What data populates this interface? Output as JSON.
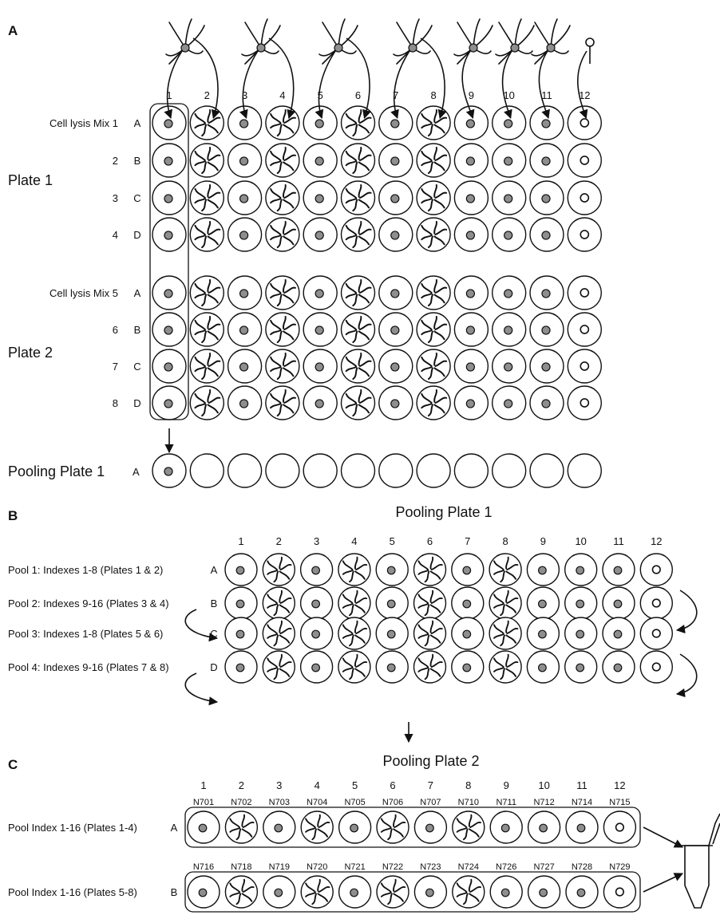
{
  "panels": {
    "a": "A",
    "b": "B",
    "c": "C"
  },
  "section_a": {
    "column_numbers": [
      "1",
      "2",
      "3",
      "4",
      "5",
      "6",
      "7",
      "8",
      "9",
      "10",
      "11",
      "12"
    ],
    "plates": [
      {
        "label": "Plate 1",
        "rows": [
          {
            "mix": "Cell lysis Mix 1",
            "letter": "A"
          },
          {
            "mix": "2",
            "letter": "B"
          },
          {
            "mix": "3",
            "letter": "C"
          },
          {
            "mix": "4",
            "letter": "D"
          }
        ]
      },
      {
        "label": "Plate 2",
        "rows": [
          {
            "mix": "Cell lysis Mix 5",
            "letter": "A"
          },
          {
            "mix": "6",
            "letter": "B"
          },
          {
            "mix": "7",
            "letter": "C"
          },
          {
            "mix": "8",
            "letter": "D"
          }
        ]
      }
    ],
    "pooling_label": "Pooling Plate 1",
    "pooling_row": "A"
  },
  "section_b": {
    "title": "Pooling Plate 1",
    "column_numbers": [
      "1",
      "2",
      "3",
      "4",
      "5",
      "6",
      "7",
      "8",
      "9",
      "10",
      "11",
      "12"
    ],
    "pools": [
      {
        "label": "Pool 1: Indexes 1-8 (Plates 1 & 2)",
        "letter": "A"
      },
      {
        "label": "Pool 2: Indexes 9-16 (Plates 3 & 4)",
        "letter": "B"
      },
      {
        "label": "Pool 3: Indexes 1-8 (Plates 5 & 6)",
        "letter": "C"
      },
      {
        "label": "Pool 4: Indexes 9-16 (Plates 7 & 8)",
        "letter": "D"
      }
    ]
  },
  "section_c": {
    "title": "Pooling Plate 2",
    "column_numbers": [
      "1",
      "2",
      "3",
      "4",
      "5",
      "6",
      "7",
      "8",
      "9",
      "10",
      "11",
      "12"
    ],
    "rows": [
      {
        "label": "Pool Index 1-16 (Plates 1-4)",
        "letter": "A",
        "indexes": [
          "N701",
          "N702",
          "N703",
          "N704",
          "N705",
          "N706",
          "N707",
          "N710",
          "N711",
          "N712",
          "N714",
          "N715"
        ]
      },
      {
        "label": "Pool Index 1-16 (Plates 5-8)",
        "letter": "B",
        "indexes": [
          "N716",
          "N718",
          "N719",
          "N720",
          "N721",
          "N722",
          "N723",
          "N724",
          "N726",
          "N727",
          "N728",
          "N729"
        ]
      }
    ]
  },
  "well_contents": [
    "cell",
    "microglia",
    "cell",
    "microglia",
    "cell",
    "microglia",
    "cell",
    "microglia",
    "cell",
    "cell",
    "cell",
    "empty"
  ],
  "colors": {
    "cell_fill": "#8e8e8e",
    "line": "#111111",
    "background": "#ffffff"
  }
}
